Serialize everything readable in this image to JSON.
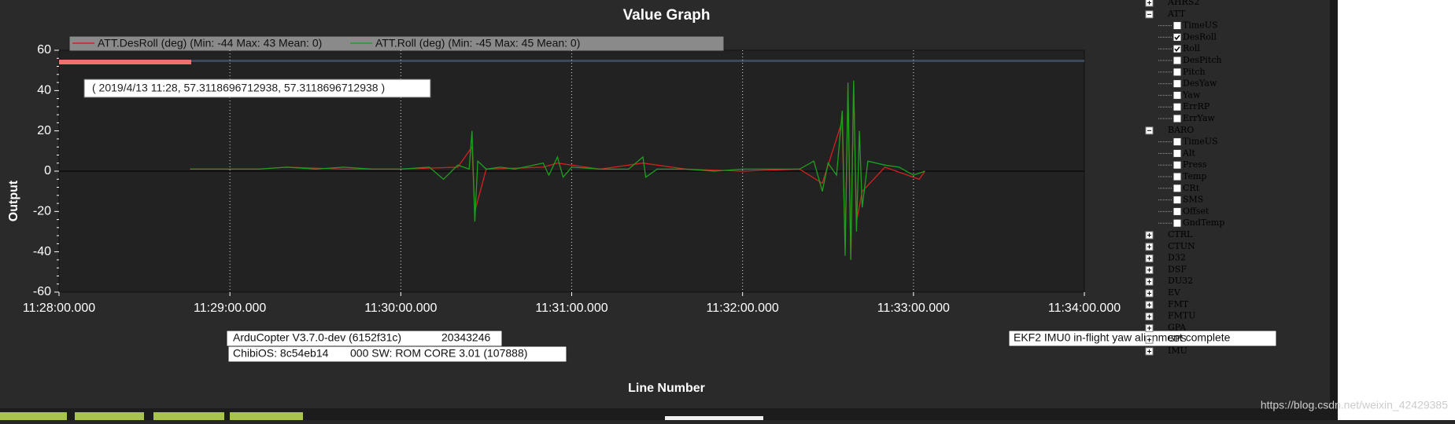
{
  "chart_data": {
    "type": "line",
    "title": "Value Graph",
    "x_label": "Line Number",
    "y_label": "Output",
    "xlim": [
      "11:28:00.000",
      "11:34:00.000"
    ],
    "xticks": [
      "11:28:00.000",
      "11:29:00.000",
      "11:30:00.000",
      "11:31:00.000",
      "11:32:00.000",
      "11:33:00.000",
      "11:34:00.000"
    ],
    "ylim": [
      -60,
      60
    ],
    "yticks": [
      60,
      40,
      20,
      0,
      -20,
      -40,
      -60
    ],
    "grid": true,
    "series": [
      {
        "name": "ATT.DesRoll (deg) (Min: -44 Max: 43 Mean: 0)",
        "color": "#d42020",
        "x": [
          "11:28:46",
          "11:29:10",
          "11:29:20",
          "11:29:40",
          "11:30:00",
          "11:30:20",
          "11:30:25",
          "11:30:26",
          "11:30:30",
          "11:30:50",
          "11:30:55",
          "11:31:10",
          "11:31:25",
          "11:31:40",
          "11:32:00",
          "11:32:20",
          "11:32:28",
          "11:32:35",
          "11:32:36",
          "11:32:37",
          "11:32:38",
          "11:32:39",
          "11:32:40",
          "11:32:42",
          "11:32:50",
          "11:33:00",
          "11:33:02",
          "11:33:04"
        ],
        "values": [
          1,
          1,
          2,
          1,
          1,
          2,
          12,
          -20,
          1,
          2,
          4,
          1,
          4,
          1,
          0,
          1,
          -6,
          25,
          -38,
          40,
          -44,
          43,
          -25,
          -10,
          2,
          -3,
          -4,
          0
        ]
      },
      {
        "name": "ATT.Roll (deg) (Min: -45 Max: 45 Mean: 0)",
        "color": "#1ea01e",
        "x": [
          "11:28:46",
          "11:29:00",
          "11:29:10",
          "11:29:20",
          "11:29:30",
          "11:29:40",
          "11:29:50",
          "11:30:00",
          "11:30:10",
          "11:30:15",
          "11:30:20",
          "11:30:24",
          "11:30:25",
          "11:30:26",
          "11:30:27",
          "11:30:30",
          "11:30:35",
          "11:30:40",
          "11:30:50",
          "11:30:52",
          "11:30:55",
          "11:30:57",
          "11:31:00",
          "11:31:10",
          "11:31:20",
          "11:31:25",
          "11:31:26",
          "11:31:30",
          "11:31:40",
          "11:31:50",
          "11:32:00",
          "11:32:10",
          "11:32:20",
          "11:32:25",
          "11:32:28",
          "11:32:30",
          "11:32:33",
          "11:32:35",
          "11:32:36",
          "11:32:37",
          "11:32:38",
          "11:32:39",
          "11:32:40",
          "11:32:41",
          "11:32:42",
          "11:32:44",
          "11:32:50",
          "11:32:55",
          "11:33:00",
          "11:33:04"
        ],
        "values": [
          1,
          1,
          1,
          2,
          1,
          2,
          1,
          1,
          2,
          -4,
          3,
          1,
          20,
          -25,
          5,
          1,
          2,
          1,
          4,
          -2,
          7,
          -3,
          2,
          1,
          1,
          7,
          -3,
          1,
          1,
          0,
          1,
          1,
          1,
          5,
          -10,
          4,
          -2,
          30,
          -42,
          44,
          -44,
          45,
          -30,
          20,
          -18,
          5,
          3,
          2,
          -2,
          0
        ]
      }
    ]
  },
  "annotations": {
    "tooltip": "( 2019/4/13 11:28, 57.3118696712938, 57.3118696712938 )",
    "version": "ArduCopter V3.7.0-dev (6152f31c)",
    "version_tail": "20343246",
    "os": "ChibiOS: 8c54eb14",
    "sw": "000 SW: ROM CORE 3.01 (107888)",
    "ekf": "EKF2 IMU0 in-flight yaw alignment complete"
  },
  "watermark": "https://blog.csdn.net/weixin_42429385",
  "tree": [
    {
      "label": "AHRS2",
      "children": []
    },
    {
      "label": "ATT",
      "children": [
        {
          "label": "TimeUS",
          "checked": false
        },
        {
          "label": "DesRoll",
          "checked": true
        },
        {
          "label": "Roll",
          "checked": true
        },
        {
          "label": "DesPitch",
          "checked": false
        },
        {
          "label": "Pitch",
          "checked": false
        },
        {
          "label": "DesYaw",
          "checked": false
        },
        {
          "label": "Yaw",
          "checked": false
        },
        {
          "label": "ErrRP",
          "checked": false
        },
        {
          "label": "ErrYaw",
          "checked": false
        }
      ]
    },
    {
      "label": "BARO",
      "children": [
        {
          "label": "TimeUS",
          "checked": false
        },
        {
          "label": "Alt",
          "checked": false
        },
        {
          "label": "Press",
          "checked": false
        },
        {
          "label": "Temp",
          "checked": false
        },
        {
          "label": "CRt",
          "checked": false
        },
        {
          "label": "SMS",
          "checked": false
        },
        {
          "label": "Offset",
          "checked": false
        },
        {
          "label": "GndTemp",
          "checked": false
        }
      ]
    },
    {
      "label": "CTRL",
      "children": []
    },
    {
      "label": "CTUN",
      "children": []
    },
    {
      "label": "D32",
      "children": []
    },
    {
      "label": "DSF",
      "children": []
    },
    {
      "label": "DU32",
      "children": []
    },
    {
      "label": "EV",
      "children": []
    },
    {
      "label": "FMT",
      "children": []
    },
    {
      "label": "FMTU",
      "children": []
    },
    {
      "label": "GPA",
      "children": []
    },
    {
      "label": "GPS",
      "children": []
    },
    {
      "label": "IMU",
      "children": []
    }
  ]
}
